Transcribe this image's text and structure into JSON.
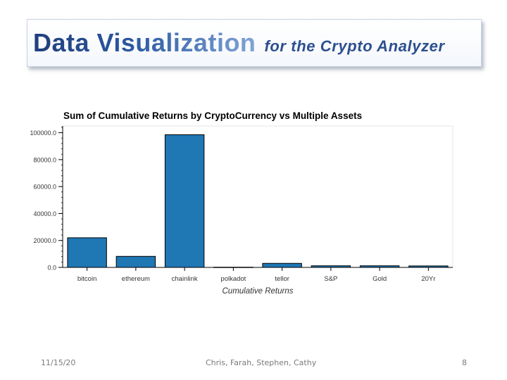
{
  "slide": {
    "title_main": "Data Visualization",
    "title_sub": "for the Crypto Analyzer",
    "footer_date": "11/15/20",
    "footer_authors": "Chris, Farah, Stephen, Cathy",
    "page_number": "8"
  },
  "chart_data": {
    "type": "bar",
    "title": "Sum of Cumulative Returns by CryptoCurrency vs Multiple Assets",
    "xlabel": "Cumulative Returns",
    "ylabel": "",
    "categories": [
      "bitcoin",
      "ethereum",
      "chainlink",
      "polkadot",
      "tellor",
      "S&P",
      "Gold",
      "20Yr"
    ],
    "values": [
      22000,
      8200,
      98500,
      150,
      3000,
      1200,
      1200,
      1100
    ],
    "ylim": [
      0,
      105000
    ],
    "yticks": [
      0,
      20000,
      40000,
      60000,
      80000,
      100000
    ],
    "ytick_labels": [
      "0.0",
      "20000.0",
      "40000.0",
      "60000.0",
      "80000.0",
      "100000.0"
    ],
    "bar_color": "#1f77b4",
    "grid": false
  }
}
